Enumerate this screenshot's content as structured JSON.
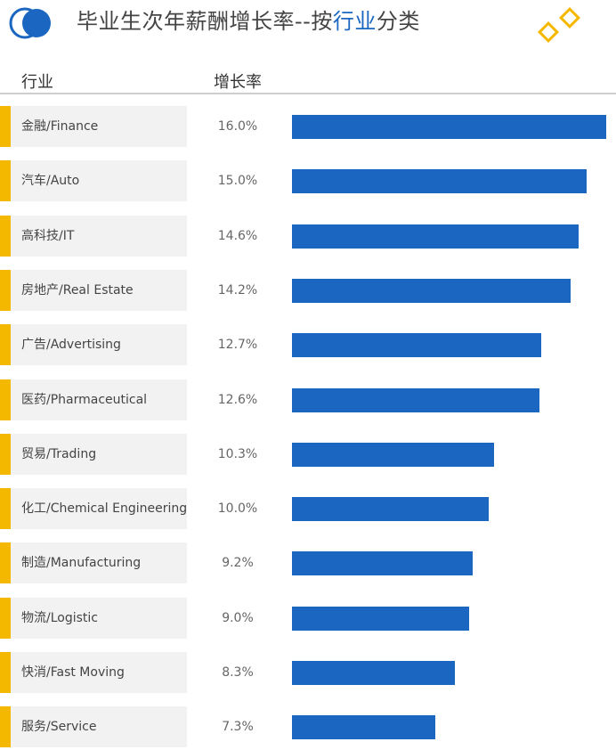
{
  "header": {
    "title_prefix": "毕业生次年薪酬增长率--按",
    "title_highlight": "行业",
    "title_suffix": "分类",
    "col_industry": "行业",
    "col_growth": "增长率"
  },
  "colors": {
    "bar": "#1a66c0",
    "accent": "#f5b800",
    "highlight": "#1a66c0"
  },
  "icons": {
    "logo": "blue-circle-logo-icon",
    "decoration": "yellow-diamonds-icon"
  },
  "chart_data": {
    "type": "bar",
    "orientation": "horizontal",
    "title": "毕业生次年薪酬增长率--按行业分类",
    "xlabel": "增长率",
    "ylabel": "行业",
    "categories": [
      "金融/Finance",
      "汽车/Auto",
      "高科技/IT",
      "房地产/Real Estate",
      "广告/Advertising",
      "医药/Pharmaceutical",
      "贸易/Trading",
      "化工/Chemical Engineering",
      "制造/Manufacturing",
      "物流/Logistic",
      "快消/Fast Moving",
      "服务/Service"
    ],
    "values": [
      16.0,
      15.0,
      14.6,
      14.2,
      12.7,
      12.6,
      10.3,
      10.0,
      9.2,
      9.0,
      8.3,
      7.3
    ],
    "value_labels": [
      "16.0%",
      "15.0%",
      "14.6%",
      "14.2%",
      "12.7%",
      "12.6%",
      "10.3%",
      "10.0%",
      "9.2%",
      "9.0%",
      "8.3%",
      "7.3%"
    ],
    "unit": "%",
    "xlim": [
      0,
      16.0
    ],
    "grid": false
  }
}
